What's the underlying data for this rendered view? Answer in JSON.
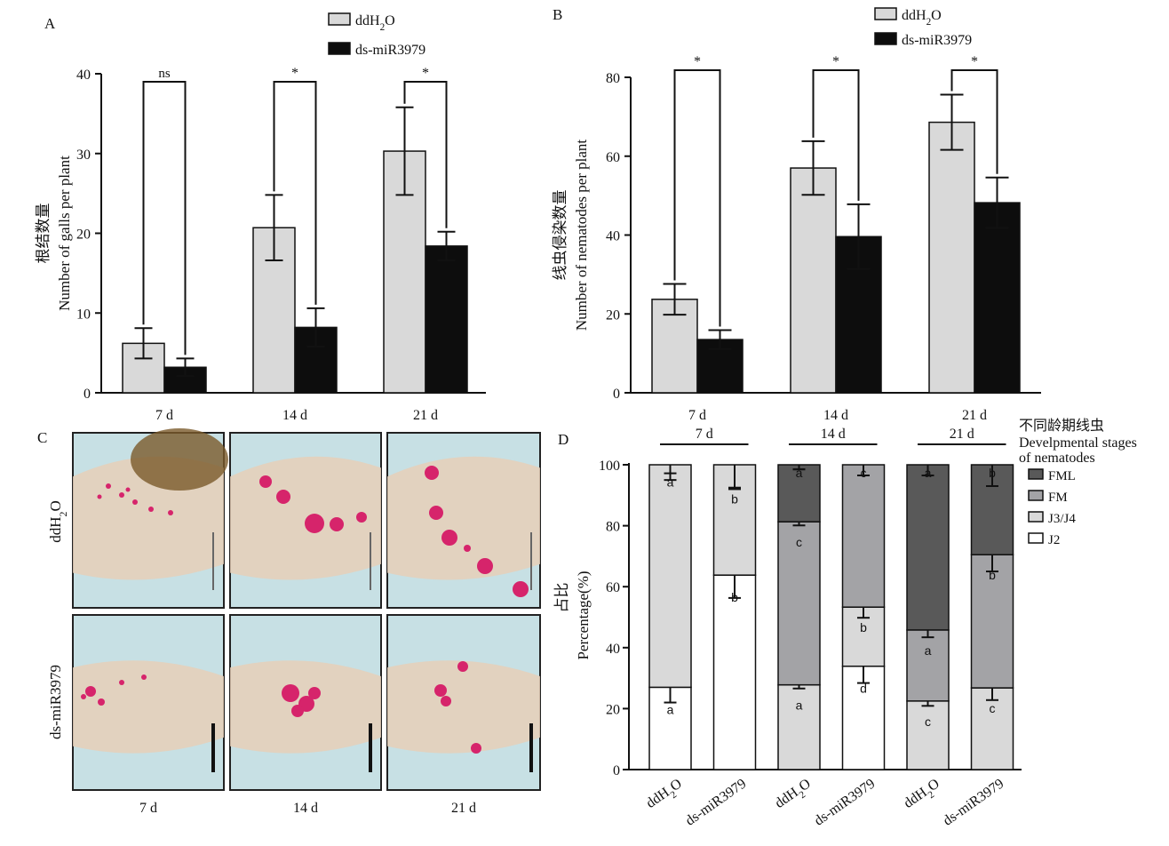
{
  "colors": {
    "ddH2O": "#d9d9d9",
    "ds": "#0d0d0d",
    "J2": "#ffffff",
    "J3J4": "#d9d9d9",
    "FM": "#a3a3a6",
    "FML": "#595959",
    "photo_bg": "#c7e0e4",
    "stain": "#d6246b"
  },
  "panels": {
    "A": {
      "letter": "A"
    },
    "B": {
      "letter": "B"
    },
    "C": {
      "letter": "C",
      "row_labels": [
        "ddH2O",
        "ds-miR3979"
      ],
      "col_labels": [
        "7 d",
        "14 d",
        "21 d"
      ]
    },
    "D": {
      "letter": "D"
    }
  },
  "chart_data": [
    {
      "type": "bar",
      "panel": "A",
      "categories": [
        "7 d",
        "14 d",
        "21 d"
      ],
      "ylabel_cn": "根结数量",
      "ylabel": "Number of galls per plant",
      "ylim": [
        0,
        40
      ],
      "yticks": [
        0,
        10,
        20,
        30,
        40
      ],
      "series": [
        {
          "name": "ddH2O",
          "values": [
            6.2,
            20.7,
            30.3
          ],
          "errors": [
            1.9,
            4.1,
            5.5
          ]
        },
        {
          "name": "ds-miR3979",
          "values": [
            3.2,
            8.2,
            18.4
          ],
          "errors": [
            1.1,
            2.4,
            1.8
          ]
        }
      ],
      "significance": [
        "ns",
        "*",
        "*"
      ]
    },
    {
      "type": "bar",
      "panel": "B",
      "categories": [
        "7 d",
        "14 d",
        "21 d"
      ],
      "ylabel_cn": "线虫侵染数量",
      "ylabel": "Number of nematodes per plant",
      "ylim": [
        0,
        80
      ],
      "yticks": [
        0,
        20,
        40,
        60,
        80
      ],
      "series": [
        {
          "name": "ddH2O",
          "values": [
            23.7,
            57.0,
            68.6
          ],
          "errors": [
            3.9,
            6.8,
            7.0
          ]
        },
        {
          "name": "ds-miR3979",
          "values": [
            13.5,
            39.6,
            48.2
          ],
          "errors": [
            2.4,
            8.2,
            6.4
          ]
        }
      ],
      "significance": [
        "*",
        "*",
        "*"
      ]
    },
    {
      "type": "bar",
      "subtype": "stacked",
      "panel": "D",
      "categories": [
        "ddH2O",
        "ds-miR3979",
        "ddH2O",
        "ds-miR3979",
        "ddH2O",
        "ds-miR3979"
      ],
      "groups": [
        {
          "label": "7 d",
          "span": [
            0,
            1
          ]
        },
        {
          "label": "14 d",
          "span": [
            2,
            3
          ]
        },
        {
          "label": "21 d",
          "span": [
            4,
            5
          ]
        }
      ],
      "ylabel_cn": "占比",
      "ylabel": "Percentage(%)",
      "ylim": [
        0,
        100
      ],
      "yticks": [
        0,
        20,
        40,
        60,
        80,
        100
      ],
      "legend_title_cn": "不同龄期线虫",
      "legend_title": "Develpmental stages of nematodes",
      "legend_title_lines": [
        "Develpmental stages",
        "of nematodes"
      ],
      "legend_order": [
        "FML",
        "FM",
        "J3/J4",
        "J2"
      ],
      "series": [
        {
          "name": "J2",
          "values": [
            27.0,
            63.8,
            0,
            33.9,
            0,
            0
          ],
          "errors": [
            5.0,
            7.5,
            0,
            5.5,
            0,
            0
          ],
          "letters": [
            "a",
            "b",
            "",
            "d",
            "",
            ""
          ]
        },
        {
          "name": "J3/J4",
          "values": [
            73.0,
            36.2,
            27.8,
            19.4,
            22.5,
            26.8
          ],
          "errors": [
            5.0,
            7.5,
            1.2,
            3.5,
            1.6,
            4.0
          ],
          "letters": [
            "a",
            "b",
            "a",
            "b",
            "c",
            "c"
          ]
        },
        {
          "name": "FM",
          "values": [
            0,
            0,
            53.5,
            46.7,
            23.3,
            43.7
          ],
          "errors": [
            0,
            0,
            1.2,
            0,
            2.4,
            5.5
          ],
          "letters": [
            "",
            "",
            "c",
            "c",
            "a",
            "b"
          ]
        },
        {
          "name": "FML",
          "values": [
            0,
            0,
            18.7,
            0,
            54.2,
            29.5
          ],
          "errors": [
            0,
            0,
            1.5,
            0,
            3.5,
            7.0
          ],
          "letters": [
            "",
            "",
            "a",
            "",
            "a",
            "b"
          ]
        }
      ],
      "letters_on_top": [
        "a",
        "b",
        "a",
        "c",
        "a",
        "b"
      ]
    }
  ]
}
